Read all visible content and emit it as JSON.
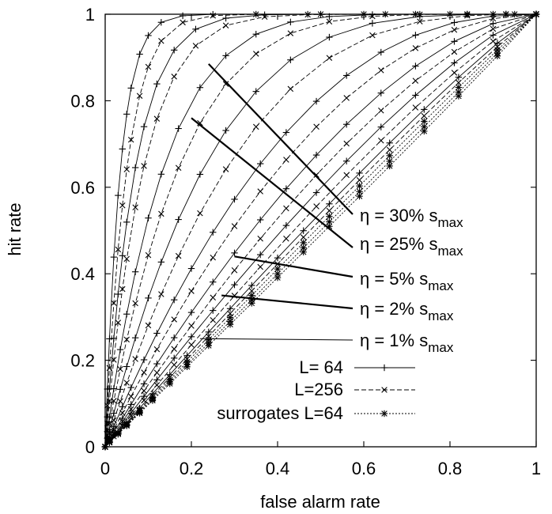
{
  "chart_data": {
    "type": "line",
    "title": "",
    "xlabel": "false alarm rate",
    "ylabel": "hit rate",
    "xlim": [
      0,
      1
    ],
    "ylim": [
      0,
      1
    ],
    "xticks": [
      "0",
      "0.2",
      "0.4",
      "0.6",
      "0.8",
      "1"
    ],
    "yticks": [
      "0",
      "0.2",
      "0.4",
      "0.6",
      "0.8",
      "1"
    ],
    "grid": false,
    "legend_position": "bottom-right",
    "legend": [
      {
        "label": "L= 64",
        "style": "solid",
        "marker": "plus"
      },
      {
        "label": "L=256",
        "style": "dashed",
        "marker": "cross"
      },
      {
        "label": "surrogates L=64",
        "style": "dotted",
        "marker": "star"
      }
    ],
    "annotations": [
      {
        "prefix": "η = 30% s",
        "sub": "max",
        "target": [
          0.24,
          0.885
        ]
      },
      {
        "prefix": "η = 25% s",
        "sub": "max",
        "target": [
          0.2,
          0.76
        ]
      },
      {
        "prefix": "η = 5% s",
        "sub": "max",
        "target": [
          0.3,
          0.44
        ]
      },
      {
        "prefix": "η = 2% s",
        "sub": "max",
        "target": [
          0.27,
          0.35
        ]
      },
      {
        "prefix": "η = 1% s",
        "sub": "max",
        "target": [
          0.22,
          0.25
        ]
      }
    ],
    "series": [
      {
        "group": "L= 64",
        "marker": "plus",
        "dash": "solid",
        "curvature": 0.965,
        "x": [
          0,
          0.005,
          0.01,
          0.02,
          0.03,
          0.04,
          0.05,
          0.06,
          0.08,
          0.1,
          0.13,
          0.18,
          0.25,
          0.35,
          0.5,
          0.65,
          0.8,
          0.9,
          0.95,
          1
        ]
      },
      {
        "group": "L=256",
        "marker": "cross",
        "dash": "dashed",
        "curvature": 0.95,
        "x": [
          0,
          0.005,
          0.01,
          0.02,
          0.03,
          0.04,
          0.05,
          0.06,
          0.08,
          0.1,
          0.13,
          0.18,
          0.25,
          0.35,
          0.5,
          0.65,
          0.8,
          0.9,
          0.95,
          1
        ]
      },
      {
        "group": "L= 64",
        "marker": "plus",
        "dash": "solid",
        "curvature": 0.93,
        "x": [
          0,
          0.005,
          0.01,
          0.02,
          0.03,
          0.04,
          0.05,
          0.07,
          0.09,
          0.12,
          0.16,
          0.21,
          0.28,
          0.37,
          0.47,
          0.6,
          0.72,
          0.84,
          0.93,
          1
        ]
      },
      {
        "group": "L=256",
        "marker": "cross",
        "dash": "dashed",
        "curvature": 0.91,
        "x": [
          0,
          0.005,
          0.01,
          0.02,
          0.03,
          0.04,
          0.05,
          0.07,
          0.09,
          0.12,
          0.16,
          0.21,
          0.28,
          0.37,
          0.47,
          0.6,
          0.72,
          0.84,
          0.93,
          1
        ]
      },
      {
        "group": "L= 64",
        "marker": "plus",
        "dash": "solid",
        "curvature": 0.86,
        "x": [
          0,
          0.005,
          0.01,
          0.02,
          0.035,
          0.05,
          0.07,
          0.1,
          0.13,
          0.17,
          0.22,
          0.28,
          0.35,
          0.43,
          0.52,
          0.62,
          0.73,
          0.84,
          0.93,
          1
        ]
      },
      {
        "group": "L=256",
        "marker": "cross",
        "dash": "dashed",
        "curvature": 0.82,
        "x": [
          0,
          0.005,
          0.01,
          0.02,
          0.035,
          0.05,
          0.07,
          0.1,
          0.13,
          0.17,
          0.22,
          0.28,
          0.35,
          0.43,
          0.52,
          0.62,
          0.73,
          0.84,
          0.93,
          1
        ]
      },
      {
        "group": "L= 64",
        "marker": "plus",
        "dash": "solid",
        "curvature": 0.75,
        "x": [
          0,
          0.005,
          0.01,
          0.02,
          0.035,
          0.05,
          0.07,
          0.1,
          0.13,
          0.17,
          0.22,
          0.28,
          0.35,
          0.43,
          0.52,
          0.62,
          0.73,
          0.84,
          0.93,
          1
        ]
      },
      {
        "group": "L=256",
        "marker": "cross",
        "dash": "dashed",
        "curvature": 0.68,
        "x": [
          0,
          0.005,
          0.01,
          0.02,
          0.035,
          0.05,
          0.07,
          0.1,
          0.13,
          0.17,
          0.22,
          0.28,
          0.35,
          0.43,
          0.52,
          0.62,
          0.73,
          0.84,
          0.93,
          1
        ]
      },
      {
        "group": "L= 64",
        "marker": "plus",
        "dash": "solid",
        "curvature": 0.58,
        "x": [
          0,
          0.01,
          0.02,
          0.04,
          0.06,
          0.09,
          0.12,
          0.16,
          0.2,
          0.25,
          0.3,
          0.36,
          0.42,
          0.49,
          0.56,
          0.64,
          0.72,
          0.81,
          0.9,
          1
        ]
      },
      {
        "group": "L=256",
        "marker": "cross",
        "dash": "dashed",
        "curvature": 0.5,
        "x": [
          0,
          0.01,
          0.02,
          0.04,
          0.06,
          0.09,
          0.12,
          0.16,
          0.2,
          0.25,
          0.3,
          0.36,
          0.42,
          0.49,
          0.56,
          0.64,
          0.72,
          0.81,
          0.9,
          1
        ]
      },
      {
        "group": "L= 64",
        "marker": "plus",
        "dash": "solid",
        "curvature": 0.4,
        "x": [
          0,
          0.01,
          0.02,
          0.04,
          0.06,
          0.09,
          0.12,
          0.16,
          0.2,
          0.25,
          0.3,
          0.36,
          0.42,
          0.49,
          0.56,
          0.64,
          0.72,
          0.81,
          0.9,
          1
        ]
      },
      {
        "group": "L=256",
        "marker": "cross",
        "dash": "dashed",
        "curvature": 0.32,
        "x": [
          0,
          0.01,
          0.02,
          0.04,
          0.06,
          0.09,
          0.12,
          0.16,
          0.2,
          0.25,
          0.3,
          0.36,
          0.42,
          0.49,
          0.56,
          0.64,
          0.72,
          0.81,
          0.9,
          1
        ]
      },
      {
        "group": "L= 64",
        "marker": "plus",
        "dash": "solid",
        "curvature": 0.24,
        "x": [
          0,
          0.01,
          0.02,
          0.04,
          0.06,
          0.09,
          0.12,
          0.16,
          0.2,
          0.25,
          0.3,
          0.36,
          0.42,
          0.49,
          0.56,
          0.64,
          0.72,
          0.81,
          0.9,
          1
        ]
      },
      {
        "group": "L=256",
        "marker": "cross",
        "dash": "dashed",
        "curvature": 0.17,
        "x": [
          0,
          0.01,
          0.02,
          0.04,
          0.06,
          0.09,
          0.12,
          0.16,
          0.2,
          0.25,
          0.3,
          0.36,
          0.42,
          0.49,
          0.56,
          0.64,
          0.72,
          0.81,
          0.9,
          1
        ]
      },
      {
        "group": "L= 64",
        "marker": "plus",
        "dash": "solid",
        "curvature": 0.11,
        "x": [
          0,
          0.01,
          0.03,
          0.05,
          0.08,
          0.11,
          0.15,
          0.19,
          0.24,
          0.29,
          0.34,
          0.4,
          0.46,
          0.52,
          0.59,
          0.66,
          0.74,
          0.82,
          0.91,
          1
        ]
      },
      {
        "group": "L=256",
        "marker": "cross",
        "dash": "dashed",
        "curvature": 0.07,
        "x": [
          0,
          0.01,
          0.03,
          0.05,
          0.08,
          0.11,
          0.15,
          0.19,
          0.24,
          0.29,
          0.34,
          0.4,
          0.46,
          0.52,
          0.59,
          0.66,
          0.74,
          0.82,
          0.91,
          1
        ]
      },
      {
        "group": "surrogates L=64",
        "marker": "star",
        "dash": "dotted",
        "curvature": 0.035,
        "x": [
          0,
          0.01,
          0.03,
          0.05,
          0.08,
          0.11,
          0.15,
          0.19,
          0.24,
          0.29,
          0.34,
          0.4,
          0.46,
          0.52,
          0.59,
          0.66,
          0.74,
          0.82,
          0.91,
          1
        ]
      },
      {
        "group": "surrogates L=64",
        "marker": "star",
        "dash": "dotted",
        "curvature": 0.0,
        "x": [
          0,
          0.01,
          0.03,
          0.05,
          0.08,
          0.11,
          0.15,
          0.19,
          0.24,
          0.29,
          0.34,
          0.4,
          0.46,
          0.52,
          0.59,
          0.66,
          0.74,
          0.82,
          0.91,
          1
        ]
      },
      {
        "group": "surrogates L=64",
        "marker": "star",
        "dash": "dotted",
        "curvature": -0.03,
        "x": [
          0,
          0.01,
          0.03,
          0.05,
          0.08,
          0.11,
          0.15,
          0.19,
          0.24,
          0.29,
          0.34,
          0.4,
          0.46,
          0.52,
          0.59,
          0.66,
          0.74,
          0.82,
          0.91,
          1
        ]
      }
    ]
  }
}
